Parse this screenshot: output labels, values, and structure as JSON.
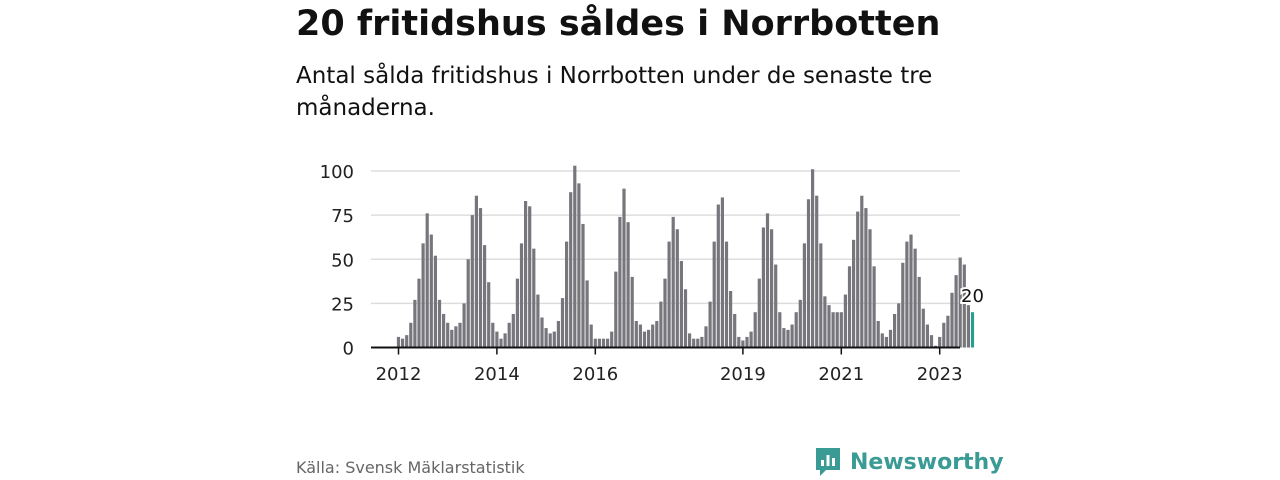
{
  "title": "20 fritidshus såldes i Norrbotten",
  "subtitle": "Antal sålda fritidshus i Norrbotten under de senaste tre månaderna.",
  "source": "Källa: Svensk Mäklarstatistik",
  "brand": {
    "name": "Newsworthy",
    "icon": "newsworthy-logo-icon"
  },
  "colors": {
    "bar": "#76767c",
    "highlight": "#2a9d8f",
    "grid": "#dddddd",
    "axis": "#111111",
    "brand": "#3a9a94"
  },
  "chart_data": {
    "type": "bar",
    "title": "20 fritidshus såldes i Norrbotten",
    "xlabel": "",
    "ylabel": "",
    "ylim": [
      0,
      100
    ],
    "yticks": [
      0,
      25,
      50,
      75,
      100
    ],
    "ytick_labels": [
      "0",
      "25",
      "50",
      "75",
      "100"
    ],
    "xtick_labels": [
      {
        "label": "2012",
        "index": 0
      },
      {
        "label": "2014",
        "index": 24
      },
      {
        "label": "2016",
        "index": 48
      },
      {
        "label": "2019",
        "index": 84
      },
      {
        "label": "2021",
        "index": 108
      },
      {
        "label": "2023",
        "index": 132
      }
    ],
    "x_start": "2012-01",
    "highlight_last": true,
    "last_label": "20",
    "values": [
      6,
      5,
      7,
      14,
      27,
      39,
      59,
      76,
      64,
      52,
      27,
      19,
      14,
      10,
      12,
      14,
      25,
      50,
      75,
      86,
      79,
      58,
      37,
      14,
      9,
      5,
      8,
      14,
      19,
      39,
      59,
      83,
      80,
      56,
      30,
      17,
      11,
      8,
      9,
      15,
      28,
      60,
      88,
      103,
      93,
      70,
      38,
      13,
      5,
      5,
      5,
      5,
      9,
      43,
      74,
      90,
      71,
      40,
      15,
      13,
      9,
      10,
      13,
      15,
      26,
      39,
      60,
      74,
      67,
      49,
      33,
      8,
      5,
      5,
      6,
      12,
      26,
      60,
      81,
      85,
      60,
      32,
      19,
      6,
      4,
      6,
      9,
      20,
      39,
      68,
      76,
      67,
      47,
      20,
      11,
      10,
      13,
      20,
      27,
      59,
      84,
      101,
      86,
      59,
      29,
      24,
      20,
      20,
      20,
      30,
      46,
      61,
      77,
      86,
      79,
      67,
      46,
      15,
      8,
      6,
      10,
      19,
      25,
      48,
      60,
      64,
      56,
      40,
      22,
      13,
      7,
      1,
      6,
      14,
      18,
      31,
      41,
      51,
      47,
      24,
      20
    ]
  }
}
